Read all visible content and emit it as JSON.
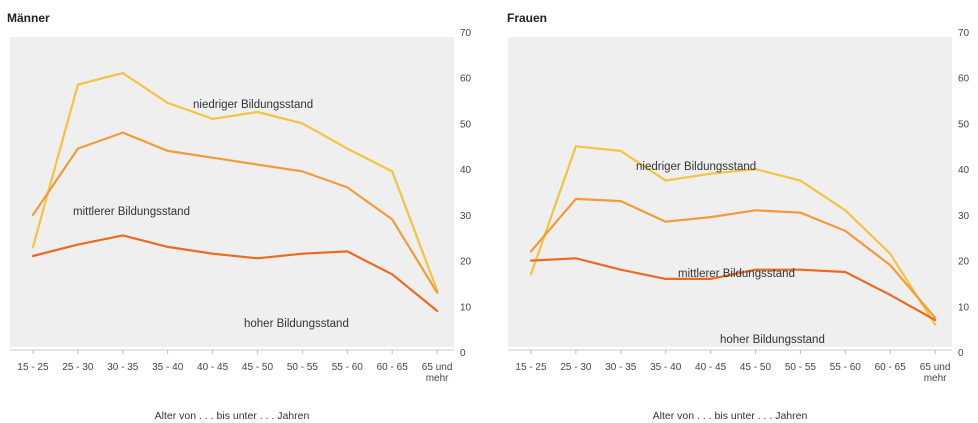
{
  "chart_data": [
    {
      "type": "line",
      "title": "Männer",
      "categories": [
        "15 - 25",
        "25 - 30",
        "30 - 35",
        "35 - 40",
        "40 - 45",
        "45 - 50",
        "50 - 55",
        "55 - 60",
        "60 - 65",
        "65 und mehr"
      ],
      "xlabel": "Alter von . . . bis unter . . . Jahren",
      "ylim": [
        0,
        70
      ],
      "yticks": [
        "0",
        "10",
        "20",
        "30",
        "40",
        "50",
        "60",
        "70"
      ],
      "grid": false,
      "series": [
        {
          "name": "niedriger Bildungsstand",
          "color": "#f5c342",
          "values": [
            23,
            58.5,
            61,
            54.5,
            51,
            52.5,
            50,
            44.5,
            39.5,
            13.5
          ]
        },
        {
          "name": "mittlerer Bildungsstand",
          "color": "#f29b38",
          "values": [
            30,
            44.5,
            48,
            44,
            42.5,
            41,
            39.5,
            36,
            29,
            13
          ]
        },
        {
          "name": "hoher Bildungsstand",
          "color": "#ec6a1f",
          "values": [
            21,
            23.5,
            25.5,
            23,
            21.5,
            20.5,
            21.5,
            22,
            17,
            9
          ]
        }
      ]
    },
    {
      "type": "line",
      "title": "Frauen",
      "categories": [
        "15 - 25",
        "25 - 30",
        "30 - 35",
        "35 - 40",
        "40 - 45",
        "45 - 50",
        "50 - 55",
        "55 - 60",
        "60 - 65",
        "65 und mehr"
      ],
      "xlabel": "Alter von . . . bis unter . . . Jahren",
      "ylim": [
        0,
        70
      ],
      "yticks": [
        "0",
        "10",
        "20",
        "30",
        "40",
        "50",
        "60",
        "70"
      ],
      "grid": false,
      "series": [
        {
          "name": "niedriger Bildungsstand",
          "color": "#f5c342",
          "values": [
            17,
            45,
            44,
            37.5,
            39,
            40,
            37.5,
            31,
            21.5,
            6
          ]
        },
        {
          "name": "mittlerer Bildungsstand",
          "color": "#f29b38",
          "values": [
            22,
            33.5,
            33,
            28.5,
            29.5,
            31,
            30.5,
            26.5,
            19,
            7.5
          ]
        },
        {
          "name": "hoher Bildungsstand",
          "color": "#ec6a1f",
          "values": [
            20,
            20.5,
            18,
            16,
            16,
            18,
            18,
            17.5,
            12.5,
            7
          ]
        }
      ]
    }
  ]
}
